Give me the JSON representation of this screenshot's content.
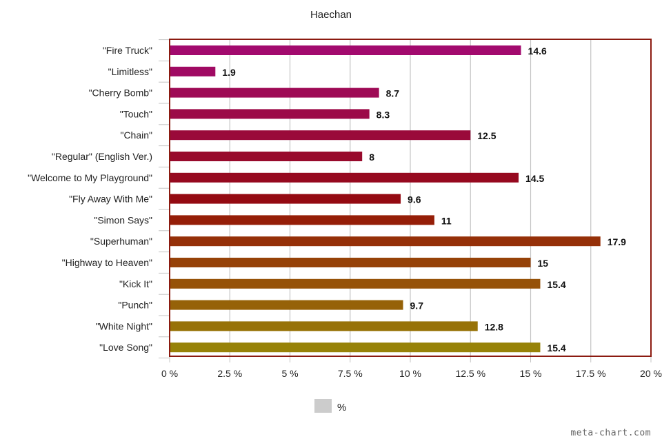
{
  "chart_data": {
    "type": "bar",
    "orientation": "horizontal",
    "title": "Haechan",
    "categories": [
      "\"Fire Truck\"",
      "\"Limitless\"",
      "\"Cherry Bomb\"",
      "\"Touch\"",
      "\"Chain\"",
      "\"Regular\" (English Ver.)",
      "\"Welcome to My Playground\"",
      "\"Fly Away With Me\"",
      "\"Simon Says\"",
      "\"Superhuman\"",
      "\"Highway to Heaven\"",
      "\"Kick It\"",
      "\"Punch\"",
      "\"White Night\"",
      "\"Love Song\""
    ],
    "values": [
      14.6,
      1.9,
      8.7,
      8.3,
      12.5,
      8,
      14.5,
      9.6,
      11,
      17.9,
      15,
      15.4,
      9.7,
      12.8,
      15.4
    ],
    "value_labels": [
      "14.6",
      "1.9",
      "8.7",
      "8.3",
      "12.5",
      "8",
      "14.5",
      "9.6",
      "11",
      "17.9",
      "15",
      "15.4",
      "9.7",
      "12.8",
      "15.4"
    ],
    "bar_colors": [
      "#a20a6e",
      "#a00a63",
      "#9e0a55",
      "#9c0a48",
      "#9a0a3a",
      "#980a2c",
      "#96091f",
      "#940a12",
      "#951e08",
      "#953008",
      "#964208",
      "#965208",
      "#966208",
      "#977208",
      "#978208"
    ],
    "xlim": [
      0,
      20
    ],
    "x_ticks": [
      0,
      2.5,
      5,
      7.5,
      10,
      12.5,
      15,
      17.5,
      20
    ],
    "x_tick_labels": [
      "0 %",
      "2.5 %",
      "5 %",
      "7.5 %",
      "10 %",
      "12.5 %",
      "15 %",
      "17.5 %",
      "20 %"
    ],
    "xlabel": "",
    "ylabel": "",
    "grid": true,
    "legend": {
      "position": "bottom",
      "entries": [
        {
          "label": "%",
          "color": "#cccccc"
        }
      ]
    },
    "frame_color": "#8b1a10"
  },
  "watermark": "meta-chart.com"
}
